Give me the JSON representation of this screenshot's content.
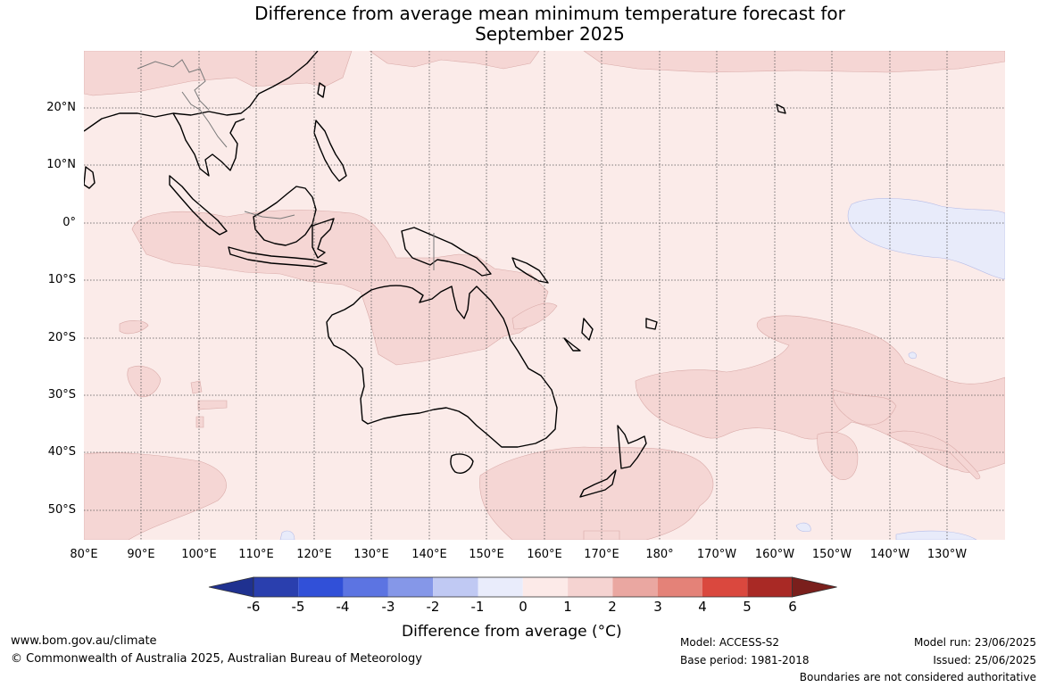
{
  "title_line1": "Difference from average mean minimum temperature forecast for",
  "title_line2": "September 2025",
  "lat_labels": [
    "20°N",
    "10°N",
    "0°",
    "10°S",
    "20°S",
    "30°S",
    "40°S",
    "50°S"
  ],
  "lon_labels": [
    "80°E",
    "90°E",
    "100°E",
    "110°E",
    "120°E",
    "130°E",
    "140°E",
    "150°E",
    "160°E",
    "170°E",
    "180°",
    "170°W",
    "160°W",
    "150°W",
    "140°W",
    "130°W"
  ],
  "colorbar": {
    "ticks": [
      "-6",
      "-5",
      "-4",
      "-3",
      "-2",
      "-1",
      "0",
      "1",
      "2",
      "3",
      "4",
      "5",
      "6"
    ],
    "colors": [
      "#1f3190",
      "#2a3fae",
      "#3150d8",
      "#5c74e2",
      "#8597e8",
      "#c0c9f3",
      "#e9ecfb",
      "#fceae8",
      "#f5d3d1",
      "#eaa7a1",
      "#e48278",
      "#da483e",
      "#a92925",
      "#7a1f1c"
    ],
    "label": "Difference from average (°C)"
  },
  "footer": {
    "website": "www.bom.gov.au/climate",
    "copyright": "© Commonwealth of Australia 2025, Australian Bureau of Meteorology",
    "model": "Model: ACCESS-S2",
    "base_period": "Base period: 1981-2018",
    "model_run": "Model run: 23/06/2025",
    "issued": "Issued: 25/06/2025",
    "boundaries": "Boundaries are not considered authoritative"
  }
}
